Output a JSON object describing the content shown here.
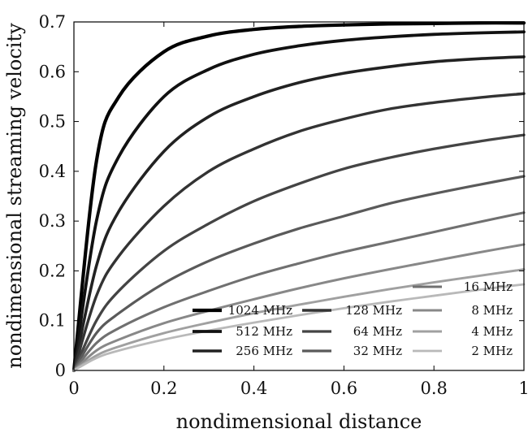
{
  "chart_data": {
    "type": "line",
    "title": "",
    "xlabel": "nondimensional distance",
    "ylabel": "nondimensional streaming velocity",
    "xlim": [
      0,
      1
    ],
    "ylim": [
      0,
      0.7
    ],
    "xticks": [
      0,
      0.2,
      0.4,
      0.6,
      0.8,
      1
    ],
    "xtick_labels": [
      "0",
      "0.2",
      "0.4",
      "0.6",
      "0.8",
      "1"
    ],
    "yticks": [
      0,
      0.1,
      0.2,
      0.3,
      0.4,
      0.5,
      0.6,
      0.7
    ],
    "ytick_labels": [
      "0",
      "0.1",
      "0.2",
      "0.3",
      "0.4",
      "0.5",
      "0.6",
      "0.7"
    ],
    "grid": false,
    "legend_position": "bottom-right",
    "x": [
      0,
      0.05,
      0.1,
      0.2,
      0.3,
      0.4,
      0.5,
      0.6,
      0.7,
      0.8,
      0.9,
      1.0
    ],
    "series": [
      {
        "name": "1024 MHz",
        "color": "#000000",
        "values": [
          0,
          0.42,
          0.55,
          0.64,
          0.672,
          0.685,
          0.691,
          0.694,
          0.696,
          0.697,
          0.698,
          0.698
        ]
      },
      {
        "name": "512 MHz",
        "color": "#111111",
        "values": [
          0,
          0.3,
          0.43,
          0.55,
          0.605,
          0.635,
          0.652,
          0.663,
          0.67,
          0.675,
          0.678,
          0.68
        ]
      },
      {
        "name": "256 MHz",
        "color": "#222222",
        "values": [
          0,
          0.21,
          0.32,
          0.44,
          0.51,
          0.55,
          0.578,
          0.597,
          0.61,
          0.62,
          0.626,
          0.63
        ]
      },
      {
        "name": "128 MHz",
        "color": "#333333",
        "values": [
          0,
          0.15,
          0.23,
          0.33,
          0.4,
          0.445,
          0.48,
          0.505,
          0.525,
          0.538,
          0.548,
          0.556
        ]
      },
      {
        "name": "64 MHz",
        "color": "#444444",
        "values": [
          0,
          0.1,
          0.16,
          0.24,
          0.295,
          0.34,
          0.375,
          0.405,
          0.427,
          0.445,
          0.46,
          0.473
        ]
      },
      {
        "name": "32 MHz",
        "color": "#5a5a5a",
        "values": [
          0,
          0.075,
          0.115,
          0.175,
          0.22,
          0.255,
          0.285,
          0.31,
          0.335,
          0.355,
          0.373,
          0.39
        ]
      },
      {
        "name": "16 MHz",
        "color": "#707070",
        "values": [
          0,
          0.055,
          0.085,
          0.127,
          0.16,
          0.19,
          0.215,
          0.238,
          0.258,
          0.278,
          0.298,
          0.317
        ]
      },
      {
        "name": "8 MHz",
        "color": "#888888",
        "values": [
          0,
          0.04,
          0.062,
          0.095,
          0.12,
          0.143,
          0.165,
          0.185,
          0.203,
          0.22,
          0.237,
          0.253
        ]
      },
      {
        "name": "4 MHz",
        "color": "#a0a0a0",
        "values": [
          0,
          0.03,
          0.048,
          0.075,
          0.096,
          0.115,
          0.132,
          0.148,
          0.163,
          0.177,
          0.19,
          0.203
        ]
      },
      {
        "name": "2 MHz",
        "color": "#b9b9b9",
        "values": [
          0,
          0.025,
          0.04,
          0.062,
          0.08,
          0.096,
          0.111,
          0.125,
          0.138,
          0.15,
          0.162,
          0.173
        ]
      }
    ]
  }
}
